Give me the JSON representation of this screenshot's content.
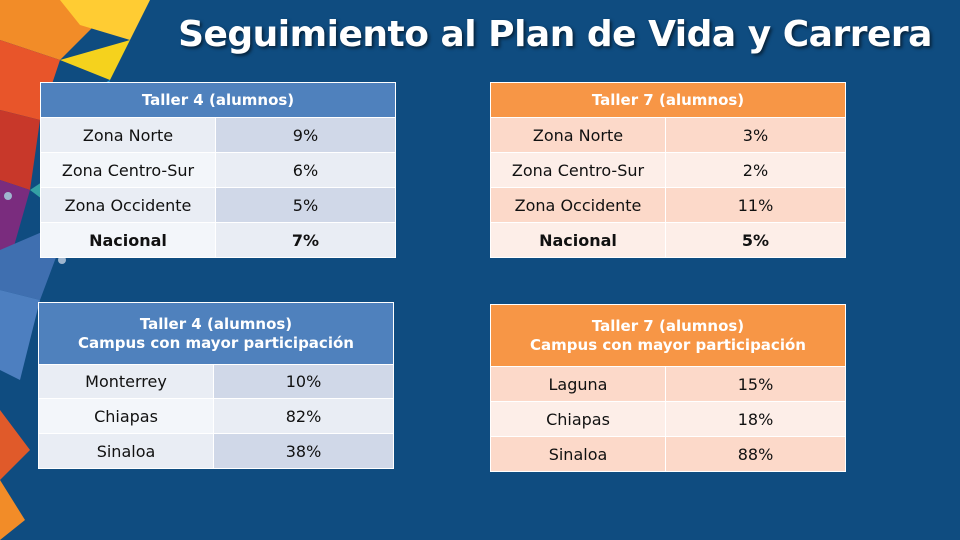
{
  "title": "Seguimiento al Plan de Vida y Carrera",
  "colors": {
    "background": "#0f4c80",
    "blue_header": "#4f81bd",
    "orange_header": "#f79646"
  },
  "tables": {
    "t4_zonas": {
      "header": "Taller 4 (alumnos)",
      "rows": [
        {
          "label": "Zona Norte",
          "value": "9%"
        },
        {
          "label": "Zona Centro-Sur",
          "value": "6%"
        },
        {
          "label": "Zona Occidente",
          "value": "5%"
        },
        {
          "label": "Nacional",
          "value": "7%"
        }
      ]
    },
    "t7_zonas": {
      "header": "Taller 7 (alumnos)",
      "rows": [
        {
          "label": "Zona Norte",
          "value": "3%"
        },
        {
          "label": "Zona Centro-Sur",
          "value": "2%"
        },
        {
          "label": "Zona Occidente",
          "value": "11%"
        },
        {
          "label": "Nacional",
          "value": "5%"
        }
      ]
    },
    "t4_campus": {
      "header_line1": "Taller 4 (alumnos)",
      "header_line2": "Campus con mayor participación",
      "rows": [
        {
          "label": "Monterrey",
          "value": "10%"
        },
        {
          "label": "Chiapas",
          "value": "82%"
        },
        {
          "label": "Sinaloa",
          "value": "38%"
        }
      ]
    },
    "t7_campus": {
      "header_line1": "Taller 7 (alumnos)",
      "header_line2": "Campus con mayor participación",
      "rows": [
        {
          "label": "Laguna",
          "value": "15%"
        },
        {
          "label": "Chiapas",
          "value": "18%"
        },
        {
          "label": "Sinaloa",
          "value": "88%"
        }
      ]
    }
  }
}
